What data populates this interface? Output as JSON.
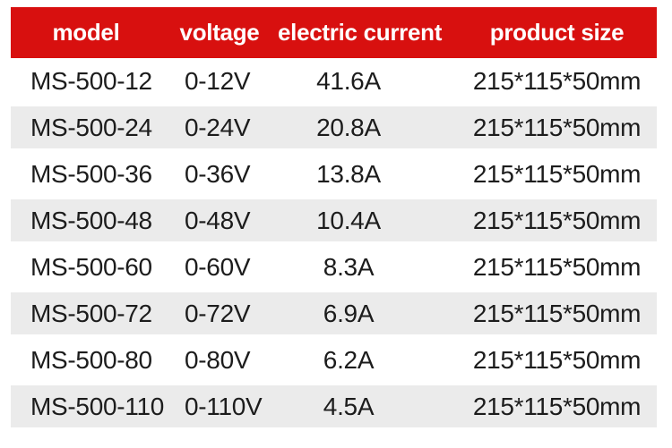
{
  "colors": {
    "page_bg": "#ffffff",
    "header_bg": "#d8100f",
    "header_text": "#ffffff",
    "row_bg": "#ffffff",
    "row_alt_bg": "#ebebeb",
    "row_text": "#1c1c1c"
  },
  "table": {
    "headers": [
      "model",
      "voltage",
      "electric current",
      "product size"
    ],
    "rows": [
      {
        "model": "MS-500-12",
        "voltage": "0-12V",
        "current": "41.6A",
        "size": "215*115*50mm"
      },
      {
        "model": "MS-500-24",
        "voltage": "0-24V",
        "current": "20.8A",
        "size": "215*115*50mm"
      },
      {
        "model": "MS-500-36",
        "voltage": "0-36V",
        "current": "13.8A",
        "size": "215*115*50mm"
      },
      {
        "model": "MS-500-48",
        "voltage": "0-48V",
        "current": "10.4A",
        "size": "215*115*50mm"
      },
      {
        "model": "MS-500-60",
        "voltage": "0-60V",
        "current": "8.3A",
        "size": "215*115*50mm"
      },
      {
        "model": "MS-500-72",
        "voltage": "0-72V",
        "current": "6.9A",
        "size": "215*115*50mm"
      },
      {
        "model": "MS-500-80",
        "voltage": "0-80V",
        "current": "6.2A",
        "size": "215*115*50mm"
      },
      {
        "model": "MS-500-110",
        "voltage": "0-110V",
        "current": "4.5A",
        "size": "215*115*50mm"
      }
    ]
  },
  "chart_data": {
    "type": "table",
    "title": "",
    "columns": [
      "model",
      "voltage",
      "electric current",
      "product size"
    ],
    "rows": [
      [
        "MS-500-12",
        "0-12V",
        "41.6A",
        "215*115*50mm"
      ],
      [
        "MS-500-24",
        "0-24V",
        "20.8A",
        "215*115*50mm"
      ],
      [
        "MS-500-36",
        "0-36V",
        "13.8A",
        "215*115*50mm"
      ],
      [
        "MS-500-48",
        "0-48V",
        "10.4A",
        "215*115*50mm"
      ],
      [
        "MS-500-60",
        "0-60V",
        "8.3A",
        "215*115*50mm"
      ],
      [
        "MS-500-72",
        "0-72V",
        "6.9A",
        "215*115*50mm"
      ],
      [
        "MS-500-80",
        "0-80V",
        "6.2A",
        "215*115*50mm"
      ],
      [
        "MS-500-110",
        "0-110V",
        "4.5A",
        "215*115*50mm"
      ]
    ],
    "layout": {
      "header_style": "solid red band, white bold text",
      "row_striping": "white / light gray alternating starting with white",
      "column_alignment": [
        "left",
        "left",
        "center",
        "center"
      ]
    }
  }
}
